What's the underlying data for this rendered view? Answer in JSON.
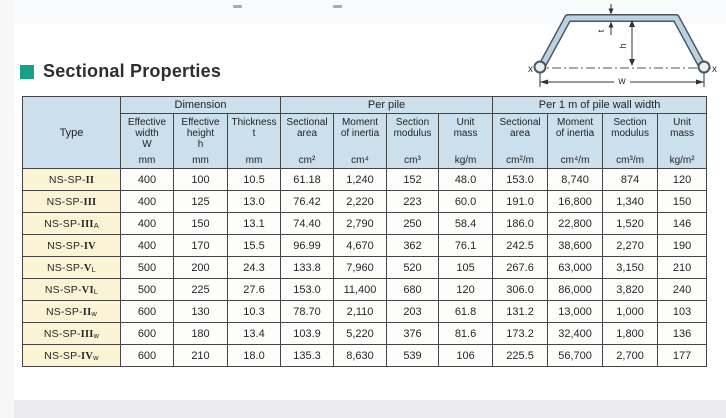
{
  "title": {
    "text": "Sectional Properties"
  },
  "colors": {
    "accent": "#17a287",
    "header_bg": "#ccdfec",
    "type_bg": "#faf4d4",
    "border": "#454545",
    "steel_fill": "#b9d3e2",
    "steel_outline": "#4c5660"
  },
  "diagram": {
    "label_t": "t",
    "label_h": "h",
    "label_w": "w",
    "label_x_left": "x",
    "label_x_right": "x"
  },
  "table": {
    "type_header": "Type",
    "groups": [
      {
        "label": "Dimension",
        "span": 3
      },
      {
        "label": "Per pile",
        "span": 4
      },
      {
        "label": "Per 1 m of pile wall width",
        "span": 4
      }
    ],
    "columns": [
      {
        "lines": [
          "Effective",
          "width",
          "W"
        ],
        "unit": "mm"
      },
      {
        "lines": [
          "Effective",
          "height",
          "h"
        ],
        "unit": "mm"
      },
      {
        "lines": [
          "Thickness",
          "t"
        ],
        "unit": "mm"
      },
      {
        "lines": [
          "Sectional",
          "area"
        ],
        "unit": "cm²"
      },
      {
        "lines": [
          "Moment",
          "of inertia"
        ],
        "unit": "cm⁴"
      },
      {
        "lines": [
          "Section",
          "modulus"
        ],
        "unit": "cm³"
      },
      {
        "lines": [
          "Unit",
          "mass"
        ],
        "unit": "kg/m"
      },
      {
        "lines": [
          "Sectional",
          "area"
        ],
        "unit": "cm²/m"
      },
      {
        "lines": [
          "Moment",
          "of inertia"
        ],
        "unit": "cm⁴/m"
      },
      {
        "lines": [
          "Section",
          "modulus"
        ],
        "unit": "cm³/m"
      },
      {
        "lines": [
          "Unit",
          "mass"
        ],
        "unit": "kg/m²"
      }
    ],
    "rows": [
      {
        "prefix": "NS-SP-",
        "numeral": "II",
        "sub": "",
        "values": [
          "400",
          "100",
          "10.5",
          "61.18",
          "1,240",
          "152",
          "48.0",
          "153.0",
          "8,740",
          "874",
          "120"
        ]
      },
      {
        "prefix": "NS-SP-",
        "numeral": "III",
        "sub": "",
        "values": [
          "400",
          "125",
          "13.0",
          "76.42",
          "2,220",
          "223",
          "60.0",
          "191.0",
          "16,800",
          "1,340",
          "150"
        ]
      },
      {
        "prefix": "NS-SP-",
        "numeral": "III",
        "sub": "A",
        "values": [
          "400",
          "150",
          "13.1",
          "74.40",
          "2,790",
          "250",
          "58.4",
          "186.0",
          "22,800",
          "1,520",
          "146"
        ]
      },
      {
        "prefix": "NS-SP-",
        "numeral": "IV",
        "sub": "",
        "values": [
          "400",
          "170",
          "15.5",
          "96.99",
          "4,670",
          "362",
          "76.1",
          "242.5",
          "38,600",
          "2,270",
          "190"
        ]
      },
      {
        "prefix": "NS-SP-",
        "numeral": "V",
        "sub": "L",
        "values": [
          "500",
          "200",
          "24.3",
          "133.8",
          "7,960",
          "520",
          "105",
          "267.6",
          "63,000",
          "3,150",
          "210"
        ]
      },
      {
        "prefix": "NS-SP-",
        "numeral": "VI",
        "sub": "L",
        "values": [
          "500",
          "225",
          "27.6",
          "153.0",
          "11,400",
          "680",
          "120",
          "306.0",
          "86,000",
          "3,820",
          "240"
        ]
      },
      {
        "prefix": "NS-SP-",
        "numeral": "II",
        "sub": "w",
        "values": [
          "600",
          "130",
          "10.3",
          "78.70",
          "2,110",
          "203",
          "61.8",
          "131.2",
          "13,000",
          "1,000",
          "103"
        ]
      },
      {
        "prefix": "NS-SP-",
        "numeral": "III",
        "sub": "w",
        "values": [
          "600",
          "180",
          "13.4",
          "103.9",
          "5,220",
          "376",
          "81.6",
          "173.2",
          "32,400",
          "1,800",
          "136"
        ]
      },
      {
        "prefix": "NS-SP-",
        "numeral": "IV",
        "sub": "w",
        "values": [
          "600",
          "210",
          "18.0",
          "135.3",
          "8,630",
          "539",
          "106",
          "225.5",
          "56,700",
          "2,700",
          "177"
        ]
      }
    ]
  }
}
